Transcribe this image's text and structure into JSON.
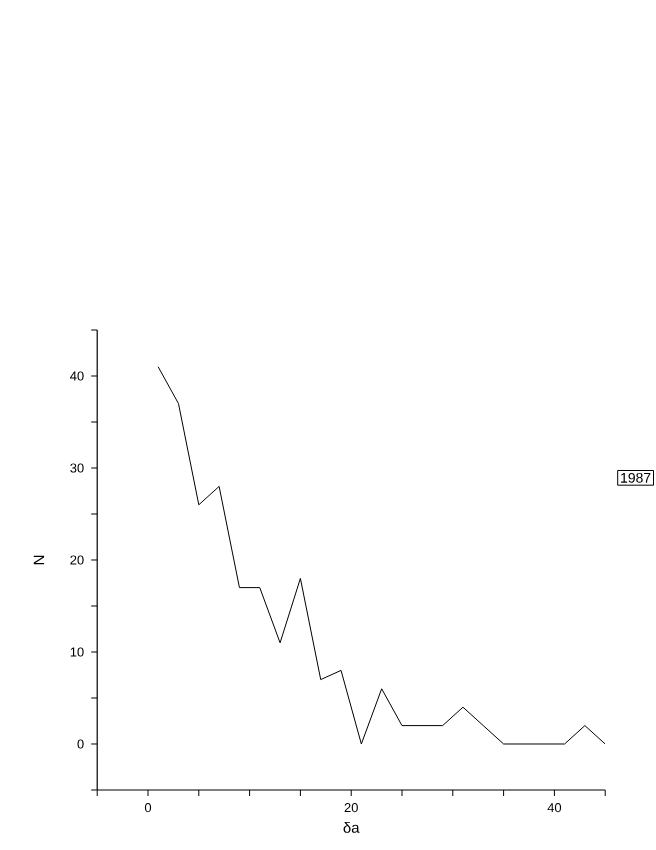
{
  "chart_data": {
    "type": "line",
    "xlabel": "δa",
    "ylabel": "N",
    "annotations": [
      "1987"
    ],
    "x": [
      1,
      3,
      5,
      7,
      9,
      11,
      13,
      15,
      17,
      19,
      21,
      23,
      25,
      27,
      29,
      31,
      33,
      35,
      37,
      39,
      41,
      43,
      45
    ],
    "series": [
      {
        "color": "#000000",
        "values": [
          41,
          37,
          26,
          28,
          17,
          17,
          11,
          18,
          7,
          8,
          0,
          6,
          2,
          2,
          2,
          4,
          2,
          0,
          0,
          0,
          0,
          2,
          0
        ]
      }
    ],
    "xlim": [
      -5,
      45
    ],
    "ylim": [
      -5,
      45
    ],
    "xticks": [
      {
        "value": -5,
        "label": null
      },
      0,
      {
        "value": 5,
        "label": null
      },
      {
        "value": 10,
        "label": null
      },
      {
        "value": 15,
        "label": null
      },
      20,
      {
        "value": 25,
        "label": null
      },
      {
        "value": 30,
        "label": null
      },
      {
        "value": 35,
        "label": null
      },
      40,
      {
        "value": 45,
        "label": null
      }
    ],
    "yticks": [
      {
        "value": -5,
        "label": null
      },
      0,
      {
        "value": 5,
        "label": null
      },
      10,
      {
        "value": 15,
        "label": null
      },
      20,
      {
        "value": 25,
        "label": null
      },
      30,
      {
        "value": 35,
        "label": null
      },
      40,
      {
        "value": 45,
        "label": null
      }
    ],
    "grid": false,
    "marker": "none",
    "line_style": "solid"
  }
}
